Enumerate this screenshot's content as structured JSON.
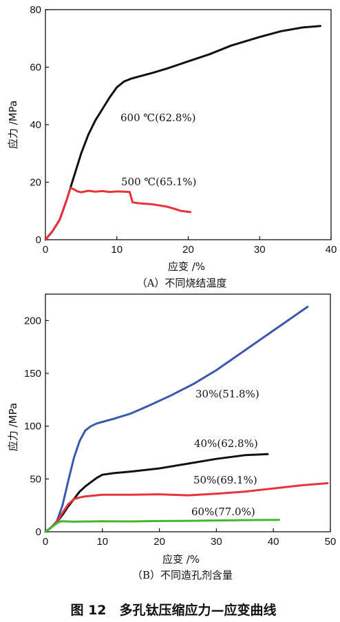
{
  "figure_title": "图 12　多孔钛压缩应力—应变曲线",
  "chart_data": [
    {
      "type": "line",
      "caption": "（A）不同烧结温度",
      "xlabel": "应变 /%",
      "ylabel": "应力 /MPa",
      "xlim": [
        0,
        40
      ],
      "ylim": [
        0,
        80
      ],
      "xticks": [
        0,
        10,
        20,
        30,
        40
      ],
      "yticks": [
        0,
        20,
        40,
        60,
        80
      ],
      "series": [
        {
          "name": "600 ℃(62.8%)",
          "color": "#111111",
          "x": [
            0,
            1,
            2,
            3,
            4,
            5,
            6,
            7,
            8,
            9,
            10,
            11,
            12,
            13,
            15,
            17,
            20,
            23,
            26,
            30,
            33,
            36,
            38.5
          ],
          "y": [
            0,
            3,
            7,
            14,
            22,
            30,
            36.5,
            41.5,
            45.5,
            49.5,
            53,
            55,
            56,
            56.7,
            58,
            59.5,
            62,
            64.5,
            67.5,
            70.5,
            72.5,
            73.8,
            74.3
          ]
        },
        {
          "name": "500 ℃(65.1%)",
          "color": "#e8323c",
          "x": [
            0,
            1,
            2,
            3,
            3.5,
            4,
            4.5,
            5,
            6,
            7,
            8,
            9,
            10,
            11,
            11.8,
            12.2,
            13,
            15,
            17,
            18,
            19,
            20.3
          ],
          "y": [
            0,
            3,
            7,
            14,
            18,
            17.5,
            16.8,
            16.5,
            17,
            16.7,
            16.9,
            16.6,
            16.8,
            16.7,
            16.6,
            13,
            12.7,
            12.3,
            11.5,
            10.8,
            10,
            9.6
          ]
        }
      ]
    },
    {
      "type": "line",
      "caption": "（B）不同造孔剂含量",
      "xlabel": "应变 /%",
      "ylabel": "应力 /MPa",
      "xlim": [
        0,
        50
      ],
      "ylim": [
        0,
        225
      ],
      "xticks": [
        0,
        10,
        20,
        30,
        40,
        50
      ],
      "yticks": [
        0,
        50,
        100,
        150,
        200
      ],
      "series": [
        {
          "name": "30%(51.8%)",
          "color": "#3a58b0",
          "x": [
            0,
            1,
            2,
            3,
            4,
            5,
            6,
            7,
            8,
            9,
            10,
            12,
            15,
            18,
            22,
            26,
            30,
            34,
            38,
            42,
            46
          ],
          "y": [
            0,
            4,
            10,
            25,
            48,
            70,
            86,
            96,
            100,
            102.5,
            104,
            107,
            112,
            119,
            129,
            140,
            153,
            168,
            183,
            198,
            213
          ]
        },
        {
          "name": "40%(62.8%)",
          "color": "#111111",
          "x": [
            0,
            1,
            2,
            3,
            4,
            5,
            6,
            7,
            8,
            9,
            10,
            12,
            15,
            20,
            25,
            30,
            35,
            39
          ],
          "y": [
            0,
            4,
            9,
            16,
            24,
            31,
            38,
            43,
            47,
            51,
            54,
            55.5,
            57,
            60,
            64.5,
            69,
            72.5,
            73.5
          ]
        },
        {
          "name": "50%(69.1%)",
          "color": "#e8323c",
          "x": [
            0,
            1,
            2,
            3,
            4,
            5,
            6,
            7,
            8,
            10,
            15,
            20,
            25,
            30,
            35,
            40,
            45,
            49.5
          ],
          "y": [
            0,
            4,
            9,
            18,
            26,
            31,
            32.5,
            33.5,
            34,
            35,
            35,
            35.5,
            34.5,
            36,
            38,
            41,
            44,
            46
          ]
        },
        {
          "name": "60%(77.0%)",
          "color": "#44b82c",
          "x": [
            0,
            1,
            2,
            2.5,
            3,
            5,
            10,
            15,
            20,
            25,
            30,
            35,
            41
          ],
          "y": [
            0,
            4,
            8,
            9.5,
            10,
            9.5,
            10,
            9.8,
            10.2,
            10.4,
            10.7,
            11,
            11.3
          ]
        }
      ]
    }
  ]
}
